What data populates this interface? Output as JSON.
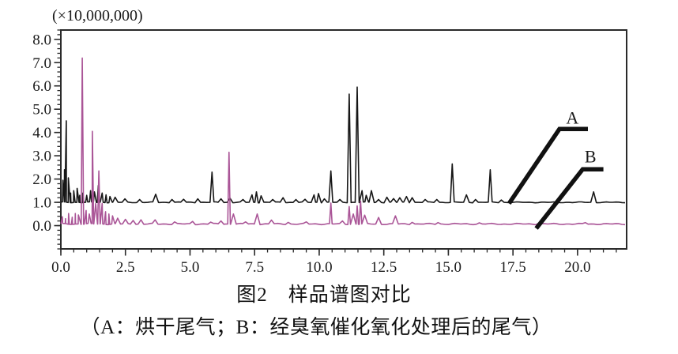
{
  "chart_data": {
    "type": "line",
    "title": "图2　样品谱图对比",
    "caption": "（A：烘干尾气；B：经臭氧催化氧化处理后的尾气）",
    "scale_label": "(×10,000,000)",
    "x_axis": {
      "min": 0,
      "max": 21.9,
      "major_step": 2.5,
      "minor_step": 0.5,
      "major_values": [
        0,
        2.5,
        5,
        7.5,
        10,
        12.5,
        15,
        17.5,
        20
      ],
      "tick_labels": [
        "0.0",
        "2.5",
        "5.0",
        "7.5",
        "10.0",
        "12.5",
        "15.0",
        "17.5",
        "20.0"
      ]
    },
    "y_axis": {
      "min": -1.0,
      "max": 8.4,
      "major_step": 1.0,
      "minor_step": 0.2,
      "major_values": [
        0,
        1,
        2,
        3,
        4,
        5,
        6,
        7,
        8
      ],
      "tick_labels": [
        "0.0",
        "1.0",
        "2.0",
        "3.0",
        "4.0",
        "5.0",
        "6.0",
        "7.0",
        "8.0"
      ]
    },
    "series": [
      {
        "name": "A",
        "description": "烘干尾气",
        "color": "#161616",
        "baseline": 1.0,
        "noise": 0.022,
        "peaks": [
          [
            0.08,
            1.95
          ],
          [
            0.14,
            2.4
          ],
          [
            0.21,
            4.5
          ],
          [
            0.29,
            2.05
          ],
          [
            0.38,
            1.4
          ],
          [
            0.5,
            1.5
          ],
          [
            0.63,
            1.6
          ],
          [
            0.73,
            1.3
          ],
          [
            0.85,
            1.4
          ],
          [
            1.0,
            1.3
          ],
          [
            1.15,
            1.5
          ],
          [
            1.3,
            1.45
          ],
          [
            1.45,
            1.72
          ],
          [
            1.6,
            1.4
          ],
          [
            1.75,
            1.32
          ],
          [
            1.9,
            1.25
          ],
          [
            2.1,
            1.22
          ],
          [
            2.48,
            1.15
          ],
          [
            3.05,
            1.12
          ],
          [
            3.67,
            1.35
          ],
          [
            4.3,
            1.12
          ],
          [
            4.75,
            1.13
          ],
          [
            5.3,
            1.15
          ],
          [
            5.85,
            2.3
          ],
          [
            6.2,
            1.15
          ],
          [
            6.55,
            1.18
          ],
          [
            7.05,
            1.12
          ],
          [
            7.4,
            1.32
          ],
          [
            7.57,
            1.45
          ],
          [
            7.75,
            1.28
          ],
          [
            8.2,
            1.12
          ],
          [
            8.6,
            1.2
          ],
          [
            9.1,
            1.12
          ],
          [
            9.45,
            1.13
          ],
          [
            9.8,
            1.32
          ],
          [
            9.97,
            1.38
          ],
          [
            10.2,
            1.15
          ],
          [
            10.45,
            2.35
          ],
          [
            10.8,
            1.12
          ],
          [
            11.16,
            5.65
          ],
          [
            11.47,
            5.95
          ],
          [
            11.66,
            1.5
          ],
          [
            11.82,
            1.3
          ],
          [
            12.02,
            1.5
          ],
          [
            12.3,
            1.12
          ],
          [
            12.62,
            1.22
          ],
          [
            12.88,
            1.16
          ],
          [
            13.12,
            1.2
          ],
          [
            13.38,
            1.25
          ],
          [
            13.6,
            1.2
          ],
          [
            14.1,
            1.12
          ],
          [
            14.55,
            1.12
          ],
          [
            15.15,
            2.65
          ],
          [
            15.7,
            1.32
          ],
          [
            16.05,
            1.12
          ],
          [
            16.62,
            2.4
          ],
          [
            17.05,
            1.1
          ],
          [
            20.62,
            1.45
          ]
        ]
      },
      {
        "name": "B",
        "description": "经臭氧催化氧化处理后的尾气",
        "color": "#aa5597",
        "baseline": 0.07,
        "noise": 0.03,
        "peaks": [
          [
            0.06,
            0.38
          ],
          [
            0.18,
            0.3
          ],
          [
            0.3,
            0.52
          ],
          [
            0.44,
            0.36
          ],
          [
            0.56,
            0.52
          ],
          [
            0.68,
            0.46
          ],
          [
            0.83,
            7.2,
            0.05
          ],
          [
            0.98,
            0.65
          ],
          [
            1.1,
            0.5
          ],
          [
            1.22,
            4.05,
            0.05
          ],
          [
            1.35,
            0.95
          ],
          [
            1.47,
            2.35,
            0.05
          ],
          [
            1.6,
            0.95
          ],
          [
            1.73,
            0.6
          ],
          [
            1.86,
            0.5
          ],
          [
            2.0,
            0.42
          ],
          [
            2.2,
            0.32
          ],
          [
            2.5,
            0.27
          ],
          [
            2.8,
            0.22
          ],
          [
            3.1,
            0.25
          ],
          [
            3.65,
            0.25
          ],
          [
            4.4,
            0.16
          ],
          [
            5.1,
            0.18
          ],
          [
            5.8,
            0.15
          ],
          [
            6.2,
            0.2
          ],
          [
            6.51,
            3.15,
            0.05
          ],
          [
            6.68,
            0.5
          ],
          [
            7.15,
            0.16
          ],
          [
            7.6,
            0.5
          ],
          [
            8.15,
            0.24
          ],
          [
            8.8,
            0.14
          ],
          [
            9.5,
            0.16
          ],
          [
            10.45,
            0.97,
            0.05
          ],
          [
            10.9,
            0.2
          ],
          [
            11.16,
            0.82,
            0.05
          ],
          [
            11.32,
            0.5
          ],
          [
            11.47,
            0.85,
            0.05
          ],
          [
            11.6,
            1.05,
            0.05
          ],
          [
            11.76,
            0.45
          ],
          [
            12.3,
            0.35
          ],
          [
            12.95,
            0.42
          ],
          [
            13.6,
            0.14
          ],
          [
            14.6,
            0.13
          ],
          [
            16.2,
            0.12
          ],
          [
            18.5,
            0.11
          ],
          [
            20.3,
            0.13
          ]
        ]
      }
    ],
    "annotations": [
      {
        "label": "A",
        "points": [
          [
            17.35,
            0.95
          ],
          [
            19.3,
            4.15
          ],
          [
            20.4,
            4.15
          ]
        ],
        "label_pos": [
          19.8,
          4.38
        ]
      },
      {
        "label": "B",
        "points": [
          [
            18.4,
            -0.12
          ],
          [
            20.2,
            2.42
          ],
          [
            21.0,
            2.42
          ]
        ],
        "label_pos": [
          20.5,
          2.72
        ]
      }
    ],
    "colors": {
      "axis": "#2a2a2a",
      "text": "#1a1a1a",
      "callout": "#111111"
    }
  }
}
